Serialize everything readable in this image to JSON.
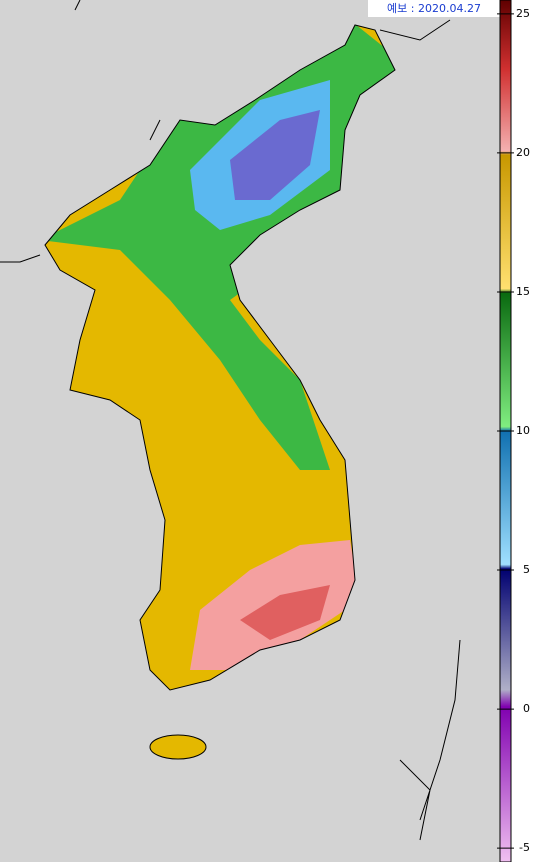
{
  "forecast_label": "예보 : 2020.04.27",
  "colorbar": {
    "range": [
      -5.5,
      25.5
    ],
    "ticks": [
      25,
      20,
      15,
      10,
      5,
      0,
      -5
    ]
  }
}
